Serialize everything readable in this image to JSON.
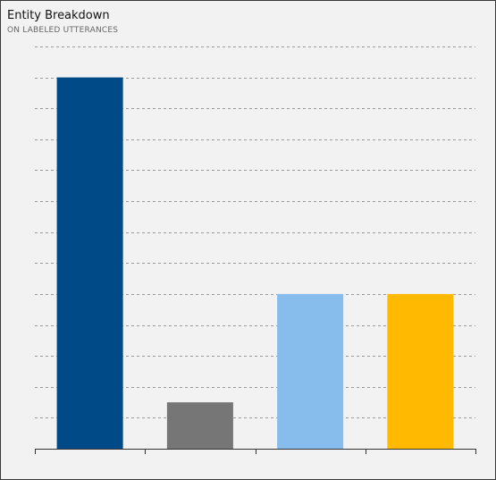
{
  "chart_data": {
    "type": "bar",
    "title": "Entity Breakdown",
    "subtitle": "ON LABELED UTTERANCES",
    "categories": [
      "",
      "",
      "",
      ""
    ],
    "values": [
      24,
      3,
      10,
      10
    ],
    "colors": [
      "#004b87",
      "#767676",
      "#87bdec",
      "#ffb900"
    ],
    "xlabel": "",
    "ylabel": "",
    "ylim": [
      0,
      26
    ],
    "grid": true,
    "gridline_step": 2,
    "legend": "none"
  }
}
